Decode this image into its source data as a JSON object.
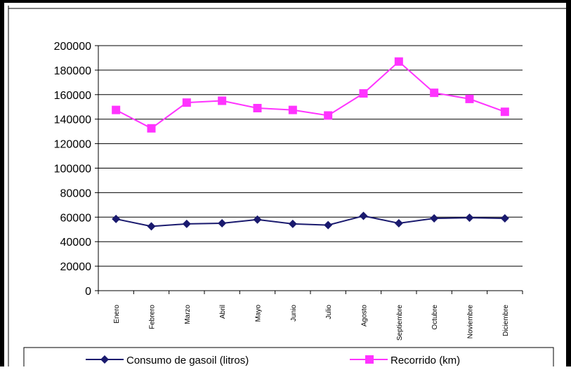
{
  "chart_data": {
    "type": "line",
    "title": "",
    "xlabel": "",
    "ylabel": "",
    "categories": [
      "Enero",
      "Febrero",
      "Marzo",
      "Abril",
      "Mayo",
      "Junio",
      "Julio",
      "Agosto",
      "Septiembre",
      "Octubre",
      "Noviembre",
      "Diciembre"
    ],
    "ylim": [
      0,
      200000
    ],
    "yticks": [
      "0",
      "20000",
      "40000",
      "60000",
      "80000",
      "100000",
      "120000",
      "140000",
      "160000",
      "180000",
      "200000"
    ],
    "grid": true,
    "legend_position": "bottom",
    "series": [
      {
        "name": "Consumo de gasoil (litros)",
        "color": "#1a1a6e",
        "marker": "diamond",
        "values": [
          58500,
          52500,
          54500,
          55000,
          58000,
          54500,
          53500,
          61000,
          55000,
          59000,
          59500,
          59000
        ]
      },
      {
        "name": "Recorrido (km)",
        "color": "#ff33ff",
        "marker": "square",
        "values": [
          147500,
          132500,
          153500,
          155000,
          149000,
          147500,
          143000,
          161000,
          187000,
          161500,
          156500,
          146000
        ]
      }
    ]
  }
}
